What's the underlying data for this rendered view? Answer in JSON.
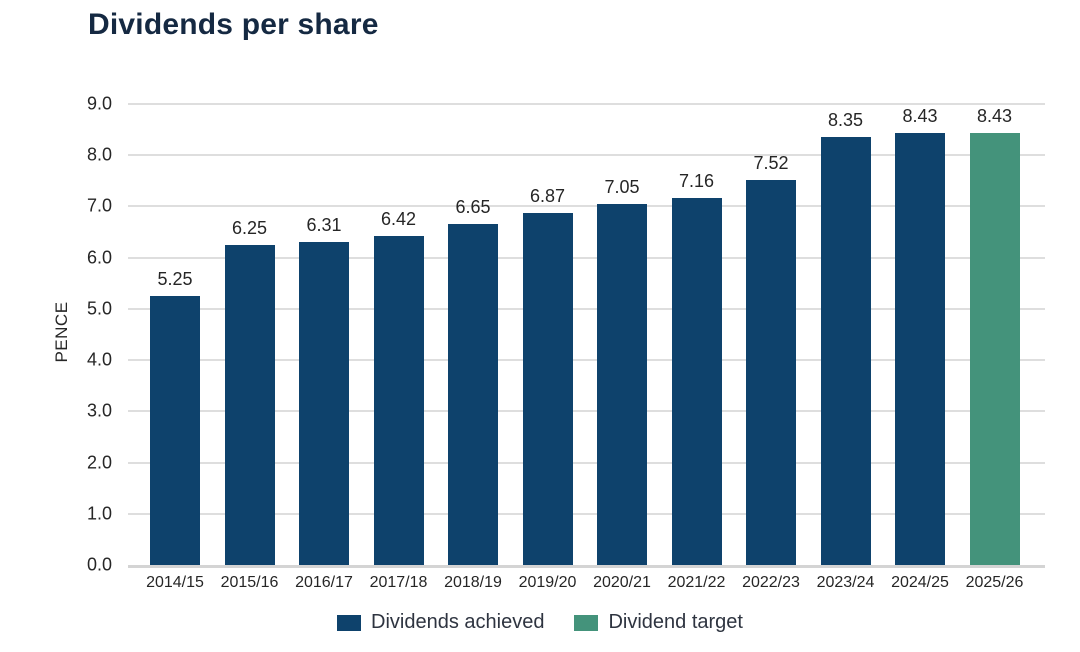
{
  "chart_data": {
    "type": "bar",
    "title": "Dividends per share",
    "xlabel": "",
    "ylabel": "PENCE",
    "ylim": [
      0,
      9
    ],
    "ytick_step": 1.0,
    "yticks": [
      "9.0",
      "8.0",
      "7.0",
      "6.0",
      "5.0",
      "4.0",
      "3.0",
      "2.0",
      "1.0",
      "0.0"
    ],
    "grid": "horizontal",
    "categories": [
      "2014/15",
      "2015/16",
      "2016/17",
      "2017/18",
      "2018/19",
      "2019/20",
      "2020/21",
      "2021/22",
      "2022/23",
      "2023/24",
      "2024/25",
      "2025/26"
    ],
    "values": [
      5.25,
      6.25,
      6.31,
      6.42,
      6.65,
      6.87,
      7.05,
      7.16,
      7.52,
      8.35,
      8.43,
      8.43
    ],
    "value_labels": [
      "5.25",
      "6.25",
      "6.31",
      "6.42",
      "6.65",
      "6.87",
      "7.05",
      "7.16",
      "7.52",
      "8.35",
      "8.43",
      "8.43"
    ],
    "bar_series": [
      0,
      0,
      0,
      0,
      0,
      0,
      0,
      0,
      0,
      0,
      0,
      1
    ],
    "legend": [
      {
        "label": "Dividends achieved",
        "color": "#0e426c"
      },
      {
        "label": "Dividend target",
        "color": "#44937b"
      }
    ],
    "legend_position": "bottom",
    "colors": {
      "achieved_bar": "#0e426c",
      "target_bar": "#44937b",
      "title_text": "#152942",
      "axis_text": "#262626",
      "gridline": "#dedede"
    }
  }
}
